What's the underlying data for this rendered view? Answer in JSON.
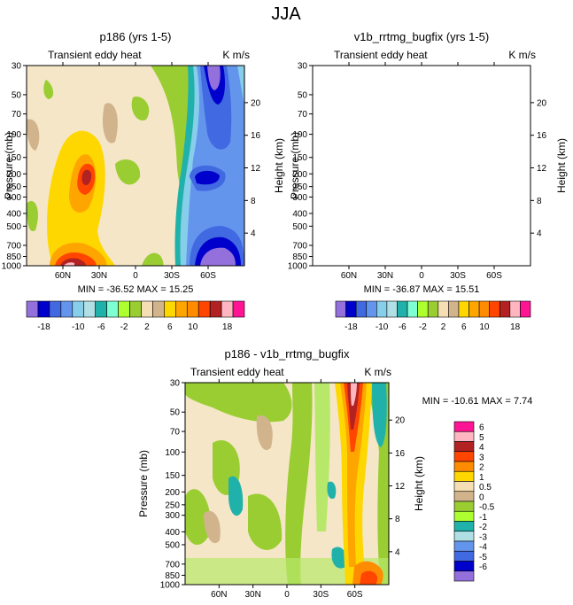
{
  "figure_title": "JJA",
  "chart_data": [
    {
      "type": "contour",
      "title": "p186 (yrs 1-5)",
      "subtitle_left": "Transient eddy heat",
      "subtitle_right": "K m/s",
      "xlabel": "",
      "ylabel": "Pressure (mb)",
      "ylabel_right": "Height (km)",
      "x_ticks": [
        "60N",
        "30N",
        "0",
        "30S",
        "60S"
      ],
      "y_ticks": [
        "30",
        "50",
        "70",
        "100",
        "150",
        "200",
        "250",
        "300",
        "400",
        "500",
        "700",
        "850",
        "1000"
      ],
      "y_right_ticks": [
        "20",
        "16",
        "12",
        "8",
        "4"
      ],
      "stats": "MIN = -36.52   MAX =  15.25",
      "min": -36.52,
      "max": 15.25
    },
    {
      "type": "contour",
      "title": "v1b_rrtmg_bugfix (yrs 1-5)",
      "subtitle_left": "Transient eddy heat",
      "subtitle_right": "K m/s",
      "xlabel": "",
      "ylabel": "Pressure (mb)",
      "ylabel_right": "Height (km)",
      "x_ticks": [
        "60N",
        "30N",
        "0",
        "30S",
        "60S"
      ],
      "y_ticks": [
        "30",
        "50",
        "70",
        "100",
        "150",
        "200",
        "250",
        "300",
        "400",
        "500",
        "700",
        "850",
        "1000"
      ],
      "y_right_ticks": [
        "20",
        "16",
        "12",
        "8",
        "4"
      ],
      "stats": "MIN = -36.87   MAX =  15.51",
      "min": -36.87,
      "max": 15.51
    },
    {
      "type": "contour",
      "title": "p186 - v1b_rrtmg_bugfix",
      "subtitle_left": "Transient eddy heat",
      "subtitle_right": "K m/s",
      "xlabel": "",
      "ylabel": "Pressure (mb)",
      "ylabel_right": "Height (km)",
      "x_ticks": [
        "60N",
        "30N",
        "0",
        "30S",
        "60S"
      ],
      "y_ticks": [
        "30",
        "50",
        "70",
        "100",
        "150",
        "200",
        "250",
        "300",
        "400",
        "500",
        "700",
        "850",
        "1000"
      ],
      "y_right_ticks": [
        "20",
        "16",
        "12",
        "8",
        "4"
      ],
      "stats": "MIN = -10.61   MAX =   7.74",
      "min": -10.61,
      "max": 7.74
    }
  ],
  "colorbar_top": {
    "labels": [
      "-18",
      "-10",
      "-6",
      "-2",
      "2",
      "6",
      "10",
      "18"
    ],
    "colors": [
      "#9370db",
      "#0000cd",
      "#4169e1",
      "#6495ed",
      "#87ceeb",
      "#b0e0e6",
      "#20b2aa",
      "#7fffd4",
      "#adff2f",
      "#9acd32",
      "#f5deb3",
      "#d2b48c",
      "#ffd700",
      "#ffa500",
      "#ff8c00",
      "#ff4500",
      "#b22222",
      "#ffb6c1",
      "#ff1493"
    ]
  },
  "colorbar_diff": {
    "labels": [
      "6",
      "5",
      "4",
      "3",
      "2",
      "1",
      "0.5",
      "0",
      "-0.5",
      "-1",
      "-2",
      "-3",
      "-4",
      "-5",
      "-6"
    ],
    "colors": [
      "#ff1493",
      "#ffb6c1",
      "#b22222",
      "#ff4500",
      "#ff8c00",
      "#ffd700",
      "#f5deb3",
      "#d2b48c",
      "#9acd32",
      "#adff2f",
      "#20b2aa",
      "#b0e0e6",
      "#6495ed",
      "#4169e1",
      "#0000cd",
      "#9370db"
    ]
  },
  "colors": {
    "bg_field": "#f5e6c8",
    "green": "#9acd32",
    "lightgreen": "#b8e86a",
    "tan": "#d2b48c",
    "yellow": "#ffd700",
    "orange": "#ffa500",
    "darkorange": "#ff8c00",
    "red": "#ff4500",
    "darkred": "#b22222",
    "pink": "#ffb6c1",
    "teal": "#20b2aa",
    "lightblue": "#87ceeb",
    "blue": "#4169e1",
    "darkblue": "#0000cd",
    "purple": "#9370db"
  }
}
